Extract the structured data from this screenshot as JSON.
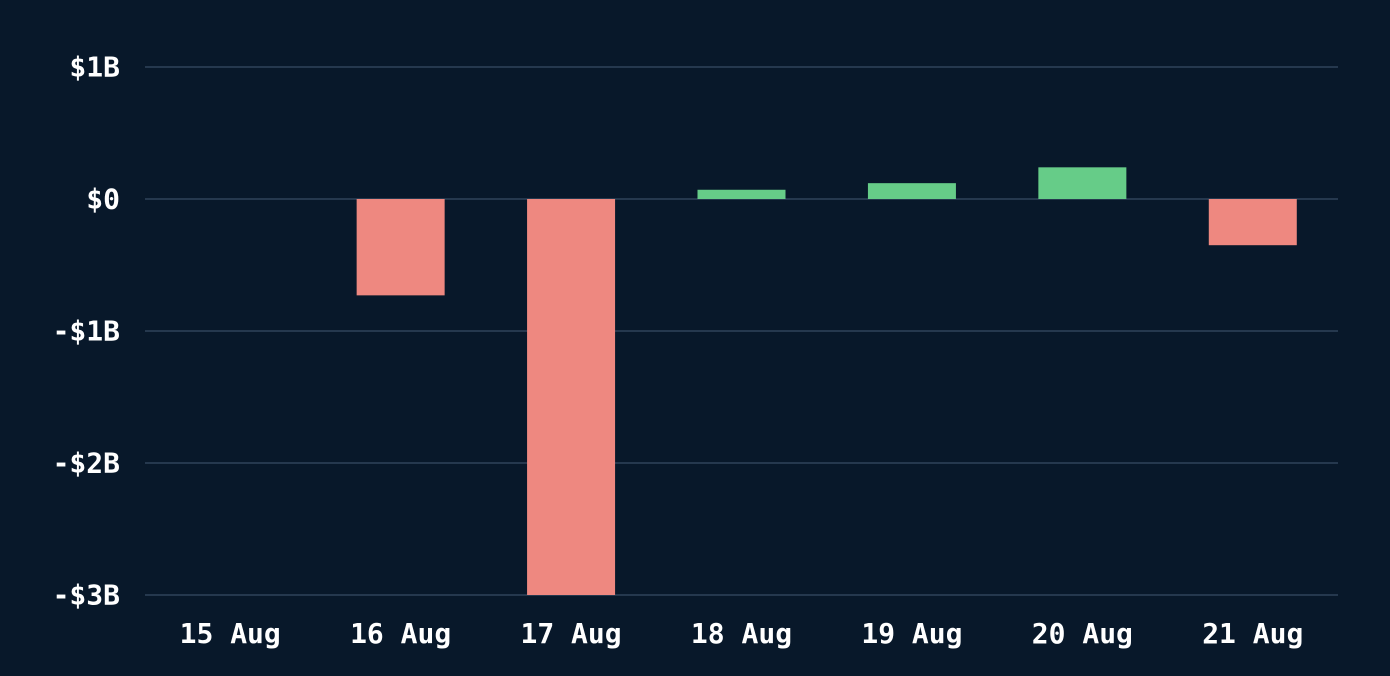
{
  "chart_data": {
    "type": "bar",
    "title": "",
    "xlabel": "",
    "ylabel": "",
    "categories": [
      "15 Aug",
      "16 Aug",
      "17 Aug",
      "18 Aug",
      "19 Aug",
      "20 Aug",
      "21 Aug"
    ],
    "values": [
      0,
      -0.73,
      -3.0,
      0.07,
      0.12,
      0.24,
      -0.35
    ],
    "unit": "USD billions",
    "ylim": [
      -3,
      1
    ],
    "y_ticks": [
      {
        "value": 1,
        "label": "$1B"
      },
      {
        "value": 0,
        "label": "$0"
      },
      {
        "value": -1,
        "label": "-$1B"
      },
      {
        "value": -2,
        "label": "-$2B"
      },
      {
        "value": -3,
        "label": "-$3B"
      }
    ],
    "grid": true,
    "legend": "none",
    "colors": {
      "background": "#08182a",
      "positive": "#66cc88",
      "negative": "#ee8880",
      "grid": "#25384e",
      "text": "#ffffff"
    }
  }
}
